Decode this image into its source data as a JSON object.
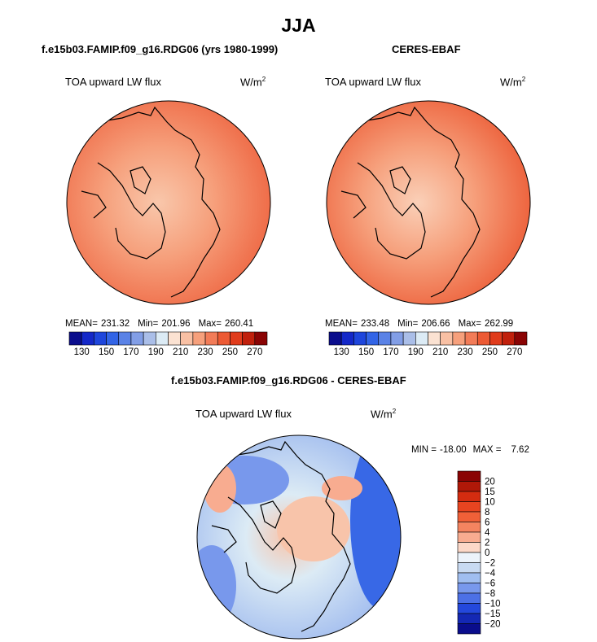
{
  "title": "JJA",
  "chart_data": [
    {
      "type": "heatmap",
      "projection": "polar-stereographic",
      "title": "f.e15b03.FAMIP.f09_g16.RDG06 (yrs 1980-1999)",
      "variable": "TOA upward LW flux",
      "units_base": "W/m",
      "units_exp": "2",
      "stats": {
        "mean_label": "MEAN=",
        "mean": "231.32",
        "min_label": "Min=",
        "min": "201.96",
        "max_label": "Max=",
        "max": "260.41"
      },
      "colorbar": {
        "orientation": "horizontal",
        "tick_labels": [
          "130",
          "150",
          "170",
          "190",
          "210",
          "230",
          "250",
          "270"
        ],
        "colors": [
          "#0a0d8c",
          "#1428c8",
          "#1e46dc",
          "#3264e6",
          "#5a82e6",
          "#829ee6",
          "#aabee8",
          "#dcebf5",
          "#fbe2d2",
          "#f8c0a4",
          "#f6a07c",
          "#f27c58",
          "#ec5a34",
          "#e03c1c",
          "#c0200c",
          "#8a0404"
        ]
      }
    },
    {
      "type": "heatmap",
      "projection": "polar-stereographic",
      "title": "CERES-EBAF",
      "variable": "TOA upward LW flux",
      "units_base": "W/m",
      "units_exp": "2",
      "stats": {
        "mean_label": "MEAN=",
        "mean": "233.48",
        "min_label": "Min=",
        "min": "206.66",
        "max_label": "Max=",
        "max": "262.99"
      },
      "colorbar": {
        "orientation": "horizontal",
        "tick_labels": [
          "130",
          "150",
          "170",
          "190",
          "210",
          "230",
          "250",
          "270"
        ],
        "colors": [
          "#0a0d8c",
          "#1428c8",
          "#1e46dc",
          "#3264e6",
          "#5a82e6",
          "#829ee6",
          "#aabee8",
          "#dcebf5",
          "#fbe2d2",
          "#f8c0a4",
          "#f6a07c",
          "#f27c58",
          "#ec5a34",
          "#e03c1c",
          "#c0200c",
          "#8a0404"
        ]
      }
    },
    {
      "type": "heatmap",
      "projection": "polar-stereographic",
      "title": "f.e15b03.FAMIP.f09_g16.RDG06 - CERES-EBAF",
      "variable": "TOA upward LW flux",
      "units_base": "W/m",
      "units_exp": "2",
      "stats": {
        "min_label": "MIN =",
        "min": "-18.00",
        "max_label": "MAX =",
        "max": "7.62"
      },
      "colorbar": {
        "orientation": "vertical",
        "tick_labels": [
          "20",
          "15",
          "10",
          "8",
          "6",
          "4",
          "2",
          "0",
          "−2",
          "−4",
          "−6",
          "−8",
          "−10",
          "−15",
          "−20"
        ],
        "colors": [
          "#8a0404",
          "#b01808",
          "#d42c10",
          "#e84420",
          "#f06038",
          "#f48460",
          "#f8ac90",
          "#fcd8c8",
          "#ecf3fb",
          "#c8daf2",
          "#a0bef0",
          "#7898ec",
          "#4c70e6",
          "#2448dc",
          "#1428b4",
          "#0a0d8c"
        ]
      }
    }
  ]
}
